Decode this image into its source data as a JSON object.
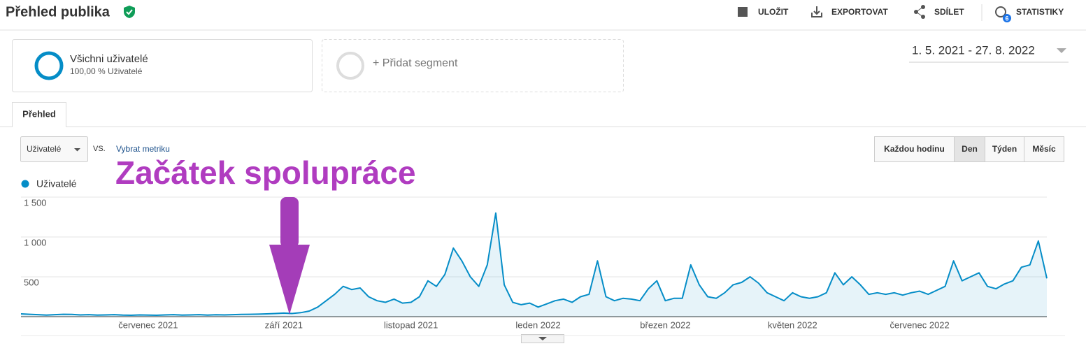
{
  "header": {
    "title": "Přehled publika",
    "actions": [
      "ULOŽIT",
      "EXPORTOVAT",
      "SDÍLET",
      "STATISTIKY"
    ],
    "badge": "6"
  },
  "segments": {
    "active": {
      "name": "Všichni uživatelé",
      "detail": "100,00 % Uživatelé"
    },
    "add": "+ Přidat segment"
  },
  "date_range": "1. 5. 2021 - 27. 8. 2022",
  "tab": "Přehled",
  "controls": {
    "metric": "Uživatelé",
    "vs": "VS.",
    "pick_metric": "Vybrat metriku",
    "granularity": [
      "Každou hodinu",
      "Den",
      "Týden",
      "Měsíc"
    ]
  },
  "chart_data": {
    "type": "line",
    "annotation": "Začátek spolupráce",
    "categories": [
      null,
      null,
      null,
      null,
      null,
      null,
      null,
      null,
      null,
      null,
      null,
      null,
      null,
      null,
      null,
      "červenec 2021",
      null,
      null,
      null,
      null,
      null,
      null,
      null,
      null,
      null,
      null,
      null,
      null,
      null,
      null,
      null,
      "září 2021",
      null,
      null,
      null,
      null,
      null,
      null,
      null,
      null,
      null,
      null,
      null,
      null,
      null,
      null,
      "listopad 2021",
      null,
      null,
      null,
      null,
      null,
      null,
      null,
      null,
      null,
      null,
      null,
      null,
      null,
      null,
      "leden 2022",
      null,
      null,
      null,
      null,
      null,
      null,
      null,
      null,
      null,
      null,
      null,
      null,
      null,
      null,
      "březen 2022",
      null,
      null,
      null,
      null,
      null,
      null,
      null,
      null,
      null,
      null,
      null,
      null,
      null,
      null,
      "květen 2022",
      null,
      null,
      null,
      null,
      null,
      null,
      null,
      null,
      null,
      null,
      null,
      null,
      null,
      null,
      "červenec 2022",
      null,
      null,
      null,
      null,
      null,
      null,
      null,
      null,
      null,
      null,
      null,
      null,
      null,
      null,
      null
    ],
    "series": [
      {
        "name": "Uživatelé",
        "color": "#058dc7",
        "values": [
          35,
          30,
          25,
          20,
          25,
          30,
          28,
          22,
          25,
          20,
          22,
          25,
          20,
          18,
          22,
          20,
          18,
          22,
          25,
          20,
          22,
          25,
          20,
          24,
          22,
          25,
          28,
          30,
          32,
          35,
          40,
          45,
          40,
          50,
          70,
          120,
          200,
          280,
          380,
          340,
          360,
          250,
          200,
          180,
          220,
          170,
          180,
          250,
          450,
          380,
          530,
          860,
          700,
          500,
          380,
          650,
          1300,
          400,
          180,
          150,
          170,
          120,
          160,
          200,
          220,
          180,
          250,
          280,
          700,
          250,
          200,
          230,
          220,
          200,
          350,
          450,
          200,
          230,
          230,
          650,
          400,
          250,
          230,
          300,
          400,
          430,
          500,
          420,
          300,
          250,
          200,
          300,
          250,
          230,
          250,
          300,
          550,
          400,
          500,
          400,
          280,
          300,
          280,
          300,
          270,
          300,
          320,
          280,
          330,
          380,
          700,
          450,
          500,
          550,
          380,
          350,
          410,
          450,
          620,
          650,
          950,
          480
        ]
      }
    ],
    "ylim": [
      0,
      1500
    ],
    "yticks": [
      500,
      {
        "value": 1000,
        "label": "1 000"
      },
      {
        "value": 1500,
        "label": "1 500"
      }
    ],
    "grid": true
  }
}
